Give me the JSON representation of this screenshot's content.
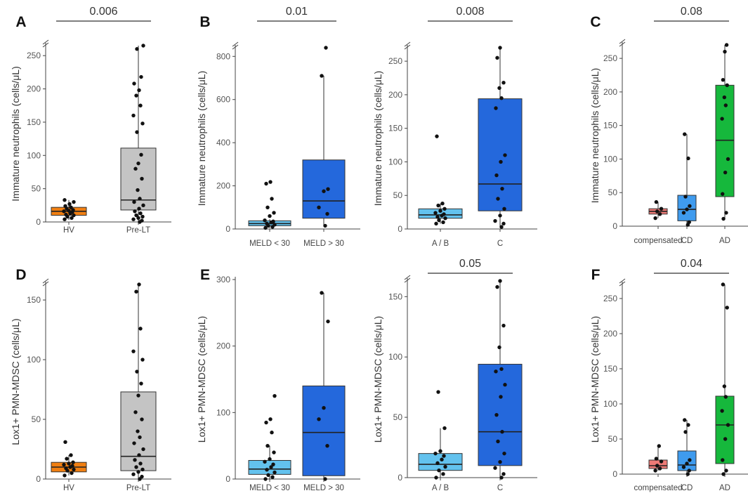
{
  "colors": {
    "orange": "#F07F12",
    "gray": "#C4C4C4",
    "blue_dark": "#2468DC",
    "blue_light": "#63C2EE",
    "blue_mid": "#3F9BEE",
    "red": "#EE7A76",
    "green": "#16B83C"
  },
  "chart_data": [
    {
      "panel_label": "A",
      "type": "boxplot",
      "ylabel": "Immature neutrophils (cells/μL)",
      "ylim": [
        0,
        265
      ],
      "yticks": [
        0,
        50,
        100,
        150,
        200,
        250
      ],
      "axis_break": true,
      "categories": [
        "HV",
        "Pre-LT"
      ],
      "series": [
        {
          "name": "HV",
          "color_key": "orange",
          "q1": 10,
          "median": 16,
          "q3": 22,
          "whisker_low": 3,
          "whisker_high": 33,
          "points": [
            4,
            6,
            8,
            10,
            11,
            13,
            15,
            16,
            17,
            18,
            20,
            22,
            24,
            27,
            30,
            33
          ]
        },
        {
          "name": "Pre-LT",
          "color_key": "gray",
          "q1": 18,
          "median": 33,
          "q3": 111,
          "whisker_low": 0,
          "whisker_high": 265,
          "points": [
            0,
            2,
            4,
            6,
            8,
            10,
            13,
            16,
            20,
            25,
            30,
            35,
            48,
            65,
            80,
            88,
            101,
            135,
            148,
            160,
            175,
            190,
            198,
            208,
            218,
            260,
            265
          ]
        }
      ],
      "significance": [
        {
          "from": "HV",
          "to": "Pre-LT",
          "label": "0.006"
        }
      ]
    },
    {
      "panel_label": "B",
      "type": "boxplot",
      "ylabel": "Immature neutrophils (cells/μL)",
      "ylim": [
        0,
        840
      ],
      "yticks": [
        0,
        200,
        400,
        600,
        800
      ],
      "axis_break": true,
      "categories": [
        "MELD < 30",
        "MELD > 30"
      ],
      "series": [
        {
          "name": "MELD < 30",
          "color_key": "blue_light",
          "q1": 15,
          "median": 25,
          "q3": 38,
          "whisker_low": 5,
          "whisker_high": 45,
          "points": [
            5,
            10,
            15,
            20,
            25,
            30,
            35,
            40,
            60,
            75,
            100,
            140,
            210,
            218
          ]
        },
        {
          "name": "MELD > 30",
          "color_key": "blue_dark",
          "q1": 50,
          "median": 130,
          "q3": 320,
          "whisker_low": 15,
          "whisker_high": 710,
          "points": [
            15,
            70,
            100,
            175,
            185,
            710,
            840
          ]
        }
      ],
      "significance": [
        {
          "from": "MELD < 30",
          "to": "MELD > 30",
          "label": "0.01"
        }
      ]
    },
    {
      "panel_label": "",
      "type": "boxplot",
      "ylabel": "Immature neutrophils (cells/μL)",
      "ylim": [
        0,
        270
      ],
      "yticks": [
        0,
        50,
        100,
        150,
        200,
        250
      ],
      "axis_break": true,
      "categories": [
        "A / B",
        "C"
      ],
      "series": [
        {
          "name": "A / B",
          "color_key": "blue_light",
          "q1": 16,
          "median": 21,
          "q3": 30,
          "whisker_low": 8,
          "whisker_high": 38,
          "points": [
            8,
            10,
            13,
            16,
            18,
            20,
            22,
            24,
            27,
            30,
            35,
            38,
            138
          ]
        },
        {
          "name": "C",
          "color_key": "blue_dark",
          "q1": 27,
          "median": 67,
          "q3": 194,
          "whisker_low": 3,
          "whisker_high": 270,
          "points": [
            3,
            8,
            12,
            20,
            30,
            45,
            60,
            80,
            100,
            110,
            180,
            195,
            210,
            218,
            255,
            270
          ]
        }
      ],
      "significance": [
        {
          "from": "A / B",
          "to": "C",
          "label": "0.008"
        }
      ]
    },
    {
      "panel_label": "C",
      "type": "boxplot",
      "ylabel": "Immature neutrophils (cells/μL)",
      "ylim": [
        0,
        270
      ],
      "yticks": [
        0,
        50,
        100,
        150,
        200,
        250
      ],
      "axis_break": true,
      "categories": [
        "compensated",
        "CD",
        "AD"
      ],
      "series": [
        {
          "name": "compensated",
          "color_key": "red",
          "q1": 18,
          "median": 22,
          "q3": 26,
          "whisker_low": 12,
          "whisker_high": 36,
          "points": [
            12,
            18,
            22,
            26,
            36
          ]
        },
        {
          "name": "CD",
          "color_key": "blue_mid",
          "q1": 8,
          "median": 25,
          "q3": 46,
          "whisker_low": 2,
          "whisker_high": 137,
          "points": [
            2,
            6,
            20,
            25,
            30,
            44,
            101,
            137
          ]
        },
        {
          "name": "AD",
          "color_key": "green",
          "q1": 44,
          "median": 128,
          "q3": 210,
          "whisker_low": 11,
          "whisker_high": 270,
          "points": [
            11,
            20,
            48,
            80,
            100,
            160,
            180,
            192,
            210,
            218,
            260,
            270
          ]
        }
      ],
      "significance": [
        {
          "from": "compensated",
          "to": "AD",
          "label": "0.08"
        }
      ]
    },
    {
      "panel_label": "D",
      "type": "boxplot",
      "ylabel": "Lox1+ PMN-MDSC (cells/μL)",
      "ylim": [
        0,
        163
      ],
      "yticks": [
        0,
        50,
        100,
        150
      ],
      "axis_break": true,
      "categories": [
        "HV",
        "Pre-LT"
      ],
      "series": [
        {
          "name": "HV",
          "color_key": "orange",
          "q1": 6,
          "median": 10,
          "q3": 14,
          "whisker_low": 3,
          "whisker_high": 20,
          "points": [
            3,
            5,
            7,
            8,
            9,
            10,
            11,
            12,
            13,
            14,
            17,
            20,
            31
          ]
        },
        {
          "name": "Pre-LT",
          "color_key": "gray",
          "q1": 7,
          "median": 19,
          "q3": 73,
          "whisker_low": 0,
          "whisker_high": 163,
          "points": [
            0,
            2,
            4,
            6,
            8,
            10,
            13,
            16,
            20,
            25,
            30,
            35,
            40,
            50,
            56,
            70,
            80,
            90,
            100,
            107,
            126,
            157,
            163
          ]
        }
      ],
      "significance": []
    },
    {
      "panel_label": "E",
      "type": "boxplot",
      "ylabel": "Lox1+ PMN-MDSC (cells/μL)",
      "ylim": [
        0,
        300
      ],
      "yticks": [
        0,
        100,
        200,
        300
      ],
      "axis_break": false,
      "categories": [
        "MELD < 30",
        "MELD > 30"
      ],
      "series": [
        {
          "name": "MELD < 30",
          "color_key": "blue_light",
          "q1": 7,
          "median": 15,
          "q3": 28,
          "whisker_low": 0,
          "whisker_high": 50,
          "points": [
            0,
            3,
            6,
            10,
            14,
            18,
            22,
            26,
            30,
            40,
            50,
            70,
            85,
            90,
            125
          ]
        },
        {
          "name": "MELD > 30",
          "color_key": "blue_dark",
          "q1": 5,
          "median": 70,
          "q3": 140,
          "whisker_low": 0,
          "whisker_high": 280,
          "points": [
            0,
            50,
            90,
            107,
            237,
            280
          ]
        }
      ],
      "significance": []
    },
    {
      "panel_label": "",
      "type": "boxplot",
      "ylabel": "Lox1+ PMN-MDSC (cells/μL)",
      "ylim": [
        0,
        163
      ],
      "yticks": [
        0,
        50,
        100,
        150
      ],
      "axis_break": true,
      "categories": [
        "A / B",
        "C"
      ],
      "series": [
        {
          "name": "A / B",
          "color_key": "blue_light",
          "q1": 6,
          "median": 11,
          "q3": 20,
          "whisker_low": 0,
          "whisker_high": 41,
          "points": [
            0,
            3,
            6,
            9,
            12,
            15,
            18,
            20,
            22,
            41,
            71
          ]
        },
        {
          "name": "C",
          "color_key": "blue_dark",
          "q1": 10,
          "median": 38,
          "q3": 94,
          "whisker_low": 0,
          "whisker_high": 163,
          "points": [
            0,
            3,
            8,
            13,
            20,
            30,
            38,
            52,
            67,
            77,
            88,
            90,
            108,
            126,
            158,
            163
          ]
        }
      ],
      "significance": [
        {
          "from": "A / B",
          "to": "C",
          "label": "0.05"
        }
      ]
    },
    {
      "panel_label": "F",
      "type": "boxplot",
      "ylabel": "Lox1+ PMN-MDSC (cells/μL)",
      "ylim": [
        0,
        270
      ],
      "yticks": [
        0,
        50,
        100,
        150,
        200,
        250
      ],
      "axis_break": true,
      "categories": [
        "compensated",
        "CD",
        "AD"
      ],
      "series": [
        {
          "name": "compensated",
          "color_key": "red",
          "q1": 8,
          "median": 12,
          "q3": 20,
          "whisker_low": 5,
          "whisker_high": 40,
          "points": [
            5,
            8,
            12,
            18,
            22,
            40
          ]
        },
        {
          "name": "CD",
          "color_key": "blue_mid",
          "q1": 5,
          "median": 13,
          "q3": 33,
          "whisker_low": 0,
          "whisker_high": 77,
          "points": [
            0,
            5,
            10,
            15,
            20,
            60,
            70,
            77
          ]
        },
        {
          "name": "AD",
          "color_key": "green",
          "q1": 15,
          "median": 70,
          "q3": 111,
          "whisker_low": 0,
          "whisker_high": 270,
          "points": [
            0,
            5,
            20,
            50,
            70,
            90,
            110,
            125,
            237,
            270
          ]
        }
      ],
      "significance": [
        {
          "from": "compensated",
          "to": "AD",
          "label": "0.04"
        }
      ]
    }
  ]
}
